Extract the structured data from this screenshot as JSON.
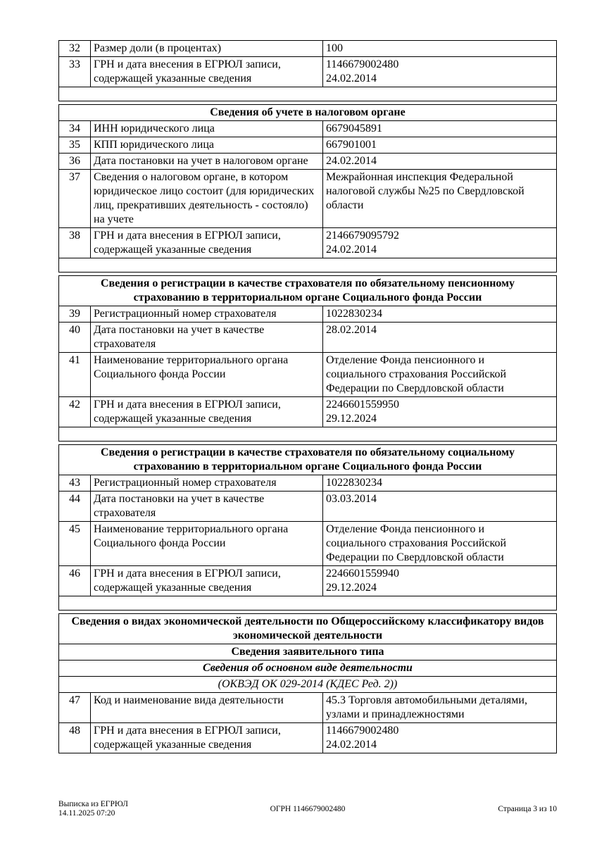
{
  "document": {
    "sections": [
      {
        "name": "share-size-continuation",
        "headers": [],
        "rows": [
          {
            "num": "32",
            "label": "Размер доли (в процентах)",
            "value": [
              "100"
            ]
          },
          {
            "num": "33",
            "label": "ГРН и дата внесения в ЕГРЮЛ записи, содержащей указанные сведения",
            "value": [
              "1146679002480",
              "24.02.2014"
            ]
          }
        ],
        "spacer_after": true
      },
      {
        "name": "tax-authority-registration",
        "headers": [
          {
            "text": "Сведения об учете в налоговом органе",
            "style": "bold"
          }
        ],
        "rows": [
          {
            "num": "34",
            "label": "ИНН юридического лица",
            "value": [
              "6679045891"
            ]
          },
          {
            "num": "35",
            "label": "КПП юридического лица",
            "value": [
              "667901001"
            ]
          },
          {
            "num": "36",
            "label": "Дата постановки на учет в налоговом органе",
            "value": [
              "24.02.2014"
            ]
          },
          {
            "num": "37",
            "label": "Сведения о налоговом органе, в котором юридическое лицо состоит (для юридических лиц, прекративших деятельность - состояло) на учете",
            "value": [
              "Межрайонная инспекция Федеральной",
              "налоговой службы №25 по Свердловской",
              "области"
            ]
          },
          {
            "num": "38",
            "label": "ГРН и дата внесения в ЕГРЮЛ записи, содержащей указанные сведения",
            "value": [
              "2146679095792",
              "24.02.2014"
            ]
          }
        ],
        "spacer_after": true
      },
      {
        "name": "pension-insurance-registration",
        "headers": [
          {
            "text": "Сведения о регистрации в качестве страхователя по обязательному пенсионному страхованию в территориальном органе Социального фонда России",
            "style": "bold"
          }
        ],
        "rows": [
          {
            "num": "39",
            "label": "Регистрационный номер страхователя",
            "value": [
              "1022830234"
            ]
          },
          {
            "num": "40",
            "label": "Дата постановки на учет в качестве страхователя",
            "value": [
              "28.02.2014"
            ]
          },
          {
            "num": "41",
            "label": "Наименование территориального органа Социального фонда России",
            "value": [
              "Отделение Фонда пенсионного и",
              "социального страхования Российской",
              "Федерации по Свердловской области"
            ]
          },
          {
            "num": "42",
            "label": "ГРН и дата внесения в ЕГРЮЛ записи, содержащей указанные сведения",
            "value": [
              "2246601559950",
              "29.12.2024"
            ]
          }
        ],
        "spacer_after": true
      },
      {
        "name": "social-insurance-registration",
        "headers": [
          {
            "text": "Сведения о регистрации в качестве страхователя по обязательному социальному страхованию в территориальном органе Социального фонда России",
            "style": "bold"
          }
        ],
        "rows": [
          {
            "num": "43",
            "label": "Регистрационный номер страхователя",
            "value": [
              "1022830234"
            ]
          },
          {
            "num": "44",
            "label": "Дата постановки на учет в качестве страхователя",
            "value": [
              "03.03.2014"
            ]
          },
          {
            "num": "45",
            "label": "Наименование территориального органа Социального фонда России",
            "value": [
              "Отделение Фонда пенсионного и",
              "социального страхования Российской",
              "Федерации по Свердловской области"
            ]
          },
          {
            "num": "46",
            "label": "ГРН и дата внесения в ЕГРЮЛ записи, содержащей указанные сведения",
            "value": [
              "2246601559940",
              "29.12.2024"
            ]
          }
        ],
        "spacer_after": true
      },
      {
        "name": "okved-activity",
        "headers": [
          {
            "text": "Сведения о видах экономической деятельности по Общероссийскому классификатору видов экономической деятельности",
            "style": "bold"
          },
          {
            "text": "Сведения заявительного типа",
            "style": "bold"
          },
          {
            "text": "Сведения об основном виде деятельности",
            "style": "bold-italic"
          },
          {
            "text": "(ОКВЭД ОК 029-2014 (КДЕС Ред. 2))",
            "style": "italic"
          }
        ],
        "rows": [
          {
            "num": "47",
            "label": "Код и наименование вида деятельности",
            "value": [
              "45.3 Торговля автомобильными деталями,",
              "узлами и принадлежностями"
            ]
          },
          {
            "num": "48",
            "label": "ГРН и дата внесения в ЕГРЮЛ записи, содержащей указанные сведения",
            "value": [
              "1146679002480",
              "24.02.2014"
            ]
          }
        ],
        "spacer_after": false
      }
    ]
  },
  "footer": {
    "doc_type": "Выписка из ЕГРЮЛ",
    "timestamp": "14.11.2025 07:20",
    "ogrn": "ОГРН 1146679002480",
    "page_info": "Страница 3 из 10"
  }
}
